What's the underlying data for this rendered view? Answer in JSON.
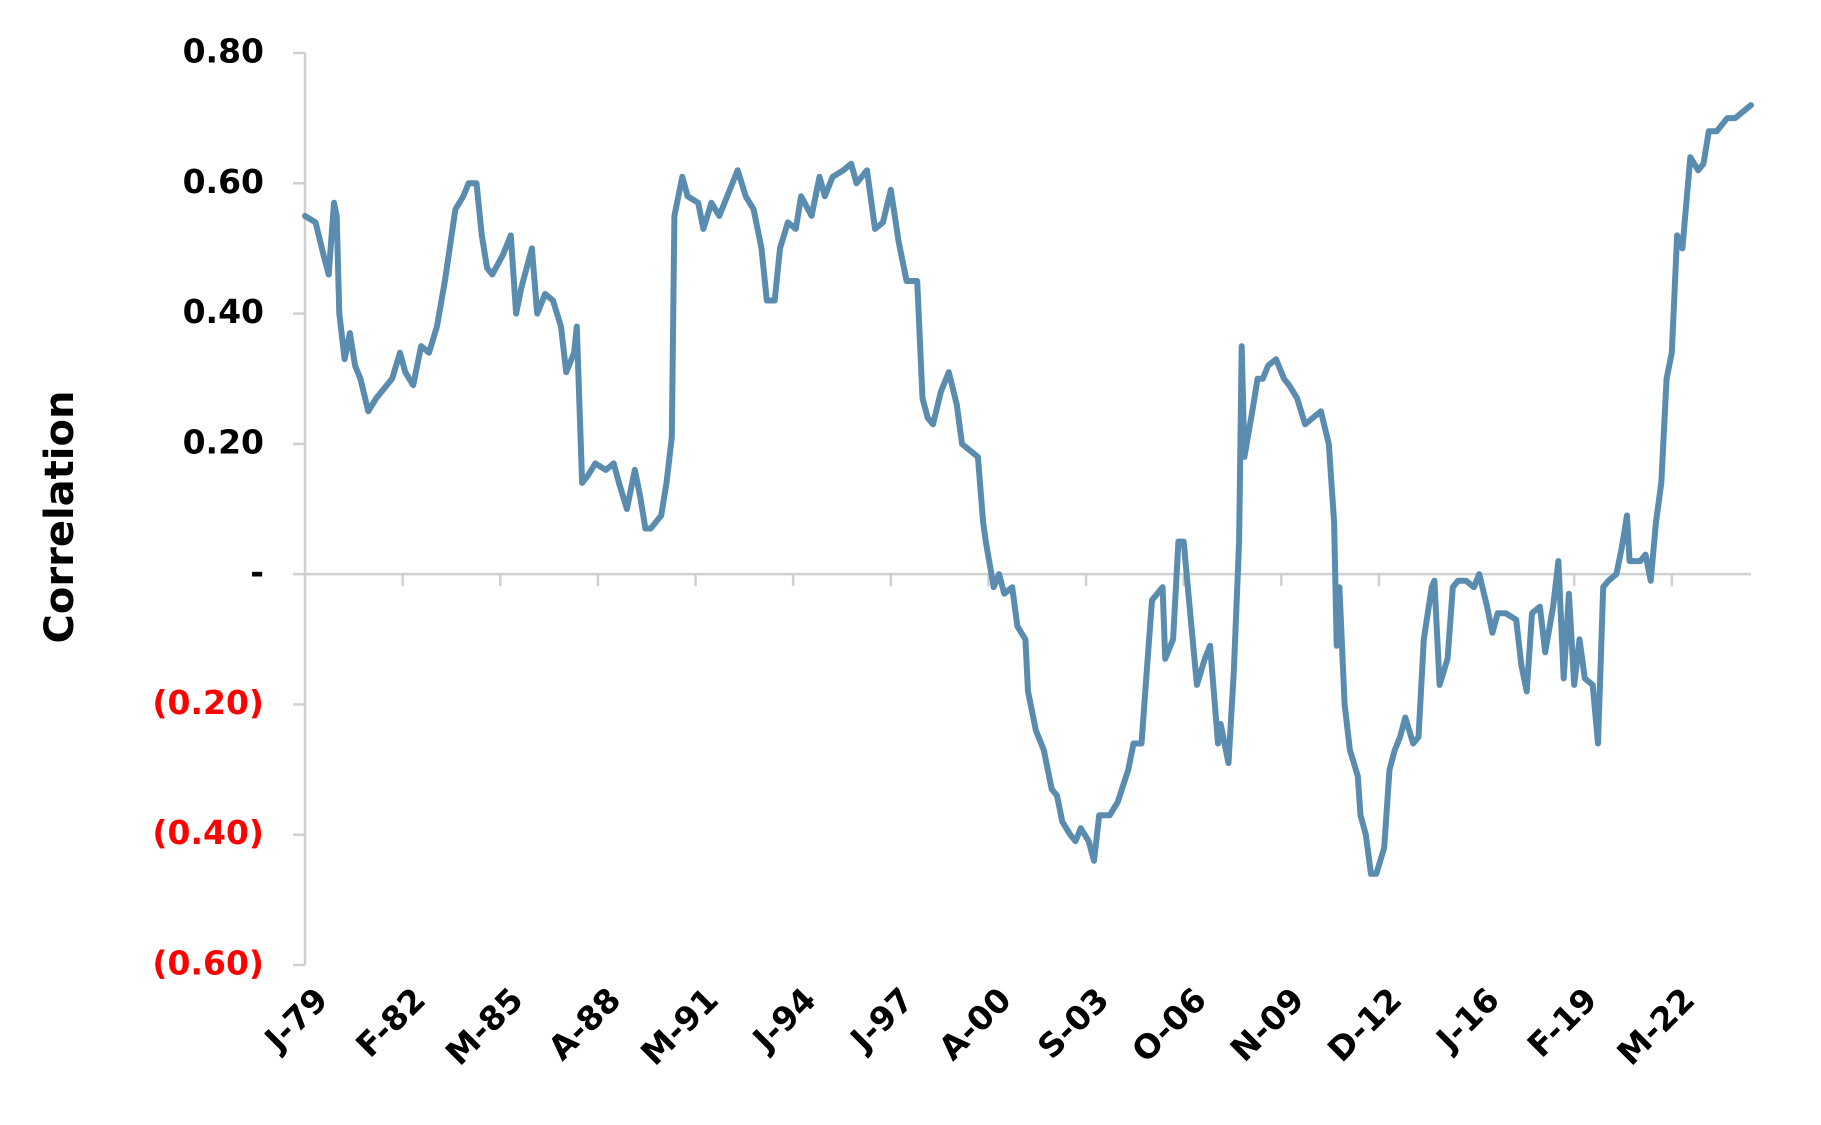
{
  "chart_data": {
    "type": "line",
    "y_label": "Correlation",
    "x": [
      0,
      4,
      7,
      9,
      11,
      12,
      13,
      15,
      17,
      19,
      21,
      24,
      27,
      29,
      33,
      36,
      38,
      41,
      44,
      47,
      50,
      53,
      57,
      60,
      62,
      65,
      67,
      69,
      71,
      75,
      78,
      80,
      82,
      86,
      88,
      91,
      94,
      97,
      99,
      102,
      103,
      105,
      107,
      110,
      114,
      117,
      119,
      122,
      125,
      127,
      129,
      131,
      135,
      137,
      139,
      140,
      143,
      145,
      149,
      151,
      154,
      157,
      160,
      164,
      167,
      170,
      173,
      175,
      178,
      180,
      183,
      186,
      188,
      192,
      195,
      197,
      200,
      204,
      207,
      209,
      213,
      216,
      219,
      222,
      225,
      228,
      232,
      234,
      236,
      238,
      241,
      244,
      247,
      249,
      252,
      255,
      257,
      258,
      261,
      263,
      265,
      268,
      270,
      273,
      274,
      277,
      280,
      283,
      285,
      287,
      290,
      292,
      294,
      297,
      299,
      301,
      305,
      308,
      312,
      314,
      317,
      319,
      321,
      323,
      325,
      326,
      329,
      331,
      333,
      335,
      338,
      341,
      343,
      346,
      347,
      350,
      352,
      354,
      355,
      356,
      359,
      361,
      363,
      365,
      368,
      371,
      373,
      376,
      379,
      382,
      385,
      388,
      390,
      391,
      392,
      394,
      396,
      399,
      400,
      402,
      404,
      406,
      409,
      411,
      413,
      415,
      417,
      420,
      422,
      424,
      427,
      428,
      430,
      433,
      435,
      437,
      440,
      443,
      445,
      448,
      450,
      452,
      455,
      459,
      461,
      463,
      465,
      468,
      470,
      473,
      475,
      477,
      479,
      481,
      483,
      485,
      488,
      490,
      492,
      494,
      497,
      499,
      501,
      502,
      506,
      508,
      510,
      512,
      514,
      516,
      518,
      520,
      522,
      525,
      528,
      530,
      532,
      535,
      539,
      542,
      545,
      548
    ],
    "series": [
      {
        "color": "#5a8cb0",
        "values": [
          0.55,
          0.54,
          0.49,
          0.46,
          0.57,
          0.55,
          0.4,
          0.33,
          0.37,
          0.32,
          0.3,
          0.25,
          0.27,
          0.28,
          0.3,
          0.34,
          0.31,
          0.29,
          0.35,
          0.34,
          0.38,
          0.45,
          0.56,
          0.58,
          0.6,
          0.6,
          0.52,
          0.47,
          0.46,
          0.49,
          0.52,
          0.4,
          0.44,
          0.5,
          0.4,
          0.43,
          0.42,
          0.38,
          0.31,
          0.34,
          0.38,
          0.14,
          0.15,
          0.17,
          0.16,
          0.17,
          0.14,
          0.1,
          0.16,
          0.12,
          0.07,
          0.07,
          0.09,
          0.14,
          0.21,
          0.55,
          0.61,
          0.58,
          0.57,
          0.53,
          0.57,
          0.55,
          0.58,
          0.62,
          0.58,
          0.56,
          0.5,
          0.42,
          0.42,
          0.5,
          0.54,
          0.53,
          0.58,
          0.55,
          0.61,
          0.58,
          0.61,
          0.62,
          0.63,
          0.6,
          0.62,
          0.53,
          0.54,
          0.59,
          0.51,
          0.45,
          0.45,
          0.27,
          0.24,
          0.23,
          0.28,
          0.31,
          0.26,
          0.2,
          0.19,
          0.18,
          0.08,
          0.05,
          -0.02,
          0.0,
          -0.03,
          -0.02,
          -0.08,
          -0.1,
          -0.18,
          -0.24,
          -0.27,
          -0.33,
          -0.34,
          -0.38,
          -0.4,
          -0.41,
          -0.39,
          -0.41,
          -0.44,
          -0.37,
          -0.37,
          -0.35,
          -0.3,
          -0.26,
          -0.26,
          -0.15,
          -0.04,
          -0.03,
          -0.02,
          -0.13,
          -0.1,
          0.05,
          0.05,
          -0.04,
          -0.17,
          -0.13,
          -0.11,
          -0.26,
          -0.23,
          -0.29,
          -0.15,
          0.05,
          0.35,
          0.18,
          0.25,
          0.3,
          0.3,
          0.32,
          0.33,
          0.3,
          0.29,
          0.27,
          0.23,
          0.24,
          0.25,
          0.2,
          0.08,
          -0.11,
          -0.02,
          -0.2,
          -0.27,
          -0.31,
          -0.37,
          -0.4,
          -0.46,
          -0.46,
          -0.42,
          -0.3,
          -0.27,
          -0.25,
          -0.22,
          -0.26,
          -0.25,
          -0.1,
          -0.02,
          -0.01,
          -0.17,
          -0.13,
          -0.02,
          -0.01,
          -0.01,
          -0.02,
          0.0,
          -0.05,
          -0.09,
          -0.06,
          -0.06,
          -0.07,
          -0.14,
          -0.18,
          -0.06,
          -0.05,
          -0.12,
          -0.05,
          0.02,
          -0.16,
          -0.03,
          -0.17,
          -0.1,
          -0.16,
          -0.17,
          -0.26,
          -0.02,
          -0.01,
          0.0,
          0.04,
          0.09,
          0.02,
          0.02,
          0.03,
          -0.01,
          0.08,
          0.14,
          0.3,
          0.34,
          0.52,
          0.5,
          0.64,
          0.62,
          0.63,
          0.68,
          0.68,
          0.7,
          0.7,
          0.71,
          0.72
        ]
      }
    ],
    "xlim": [
      0,
      548
    ],
    "xticks": [
      {
        "value": 0,
        "label": "J-79"
      },
      {
        "value": 37,
        "label": "F-82"
      },
      {
        "value": 74,
        "label": "M-85"
      },
      {
        "value": 111,
        "label": "A-88"
      },
      {
        "value": 148,
        "label": "M-91"
      },
      {
        "value": 185,
        "label": "J-94"
      },
      {
        "value": 222,
        "label": "J-97"
      },
      {
        "value": 259,
        "label": "A-00"
      },
      {
        "value": 296,
        "label": "S-03"
      },
      {
        "value": 333,
        "label": "O-06"
      },
      {
        "value": 370,
        "label": "N-09"
      },
      {
        "value": 407,
        "label": "D-12"
      },
      {
        "value": 444,
        "label": "J-16"
      },
      {
        "value": 481,
        "label": "F-19"
      },
      {
        "value": 518,
        "label": "M-22"
      }
    ],
    "ylim": [
      -0.6,
      0.8
    ],
    "yticks": [
      {
        "value": 0.8,
        "label": "0.80"
      },
      {
        "value": 0.6,
        "label": "0.60"
      },
      {
        "value": 0.4,
        "label": "0.40"
      },
      {
        "value": 0.2,
        "label": "0.20"
      },
      {
        "value": 0,
        "label": "-"
      },
      {
        "value": -0.2,
        "label": "(0.20)"
      },
      {
        "value": -0.4,
        "label": "(0.40)"
      },
      {
        "value": -0.6,
        "label": "(0.60)"
      }
    ],
    "negative_tick_color": "#ff0000",
    "tick_color": "#000000"
  }
}
